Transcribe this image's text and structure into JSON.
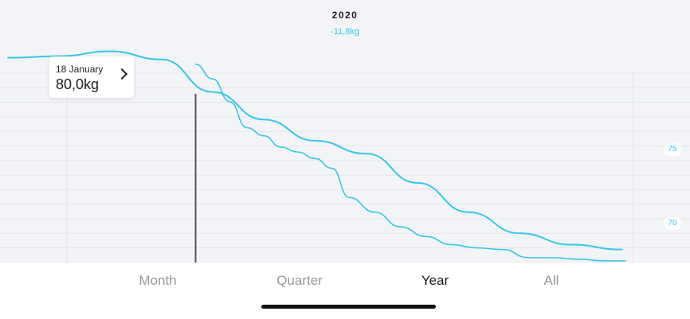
{
  "header": {
    "year": "2020",
    "delta": "-11,8kg"
  },
  "tooltip": {
    "date": "18 January",
    "value": "80,0kg"
  },
  "y_axis": {
    "ticks": [
      "75",
      "70"
    ]
  },
  "tabs": [
    {
      "label": "Month",
      "active": false
    },
    {
      "label": "Quarter",
      "active": false
    },
    {
      "label": "Year",
      "active": true
    },
    {
      "label": "All",
      "active": false
    }
  ],
  "colors": {
    "line": "#39c6e8",
    "background": "#f3f4f7"
  },
  "chart_data": {
    "type": "line",
    "title": "2020",
    "subtitle": "-11,8kg",
    "ylim": [
      67.8,
      82
    ],
    "y_ticks": [
      75,
      70
    ],
    "selected_point": {
      "x": "18 January",
      "y": 80.0
    },
    "series": [
      {
        "x": [
          0,
          30,
          60,
          90,
          120,
          150,
          180,
          210,
          240,
          270,
          300,
          330,
          360
        ],
        "values": [
          80.4,
          80.5,
          80.8,
          80.3,
          78.3,
          76.6,
          75.3,
          74.5,
          72.7,
          70.9,
          69.6,
          68.9,
          68.6
        ]
      },
      {
        "x": [
          110,
          120,
          130,
          140,
          150,
          160,
          170,
          180,
          190,
          200,
          215,
          230,
          245,
          260,
          275,
          290,
          305,
          320,
          335,
          350,
          362
        ],
        "values": [
          80.0,
          79.1,
          77.7,
          76.1,
          75.6,
          74.9,
          74.6,
          74.2,
          73.6,
          71.8,
          70.9,
          70.0,
          69.4,
          68.9,
          68.7,
          68.6,
          68.1,
          68.1,
          68.0,
          67.9,
          67.9
        ]
      }
    ]
  }
}
